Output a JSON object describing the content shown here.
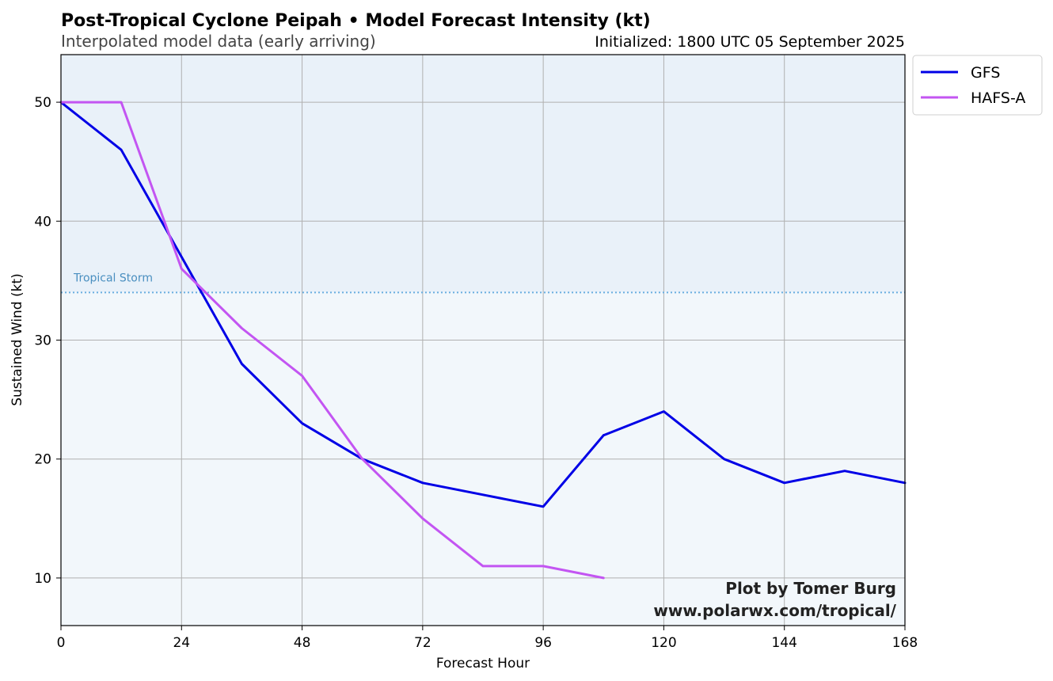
{
  "chart_data": {
    "type": "line",
    "title": "Post-Tropical Cyclone Peipah • Model Forecast Intensity (kt)",
    "subtitle": "Interpolated model data (early arriving)",
    "initialized": "Initialized: 1800 UTC 05 September 2025",
    "xlabel": "Forecast Hour",
    "ylabel": "Sustained Wind (kt)",
    "xlim": [
      0,
      168
    ],
    "ylim": [
      6,
      54
    ],
    "xticks": [
      0,
      24,
      48,
      72,
      96,
      120,
      144,
      168
    ],
    "yticks": [
      10,
      20,
      30,
      40,
      50
    ],
    "grid": true,
    "legend_position": "outside-top-right",
    "threshold": {
      "value": 34,
      "label": "Tropical Storm",
      "color": "#6aaee0"
    },
    "background": {
      "above_threshold": "#e9f1f9",
      "below_threshold": "#f2f7fb"
    },
    "series": [
      {
        "name": "GFS",
        "color": "#0000e6",
        "x": [
          0,
          12,
          24,
          36,
          48,
          60,
          72,
          84,
          96,
          108,
          120,
          132,
          144,
          156,
          168
        ],
        "y": [
          50,
          46,
          37,
          28,
          23,
          20,
          18,
          17,
          16,
          22,
          24,
          20,
          18,
          19,
          18
        ]
      },
      {
        "name": "HAFS-A",
        "color": "#c355f2",
        "x": [
          0,
          12,
          24,
          36,
          48,
          60,
          72,
          84,
          96,
          108
        ],
        "y": [
          50,
          50,
          36,
          31,
          27,
          20,
          15,
          11,
          11,
          10
        ]
      }
    ],
    "credit": [
      "Plot by Tomer Burg",
      "www.polarwx.com/tropical/"
    ]
  }
}
